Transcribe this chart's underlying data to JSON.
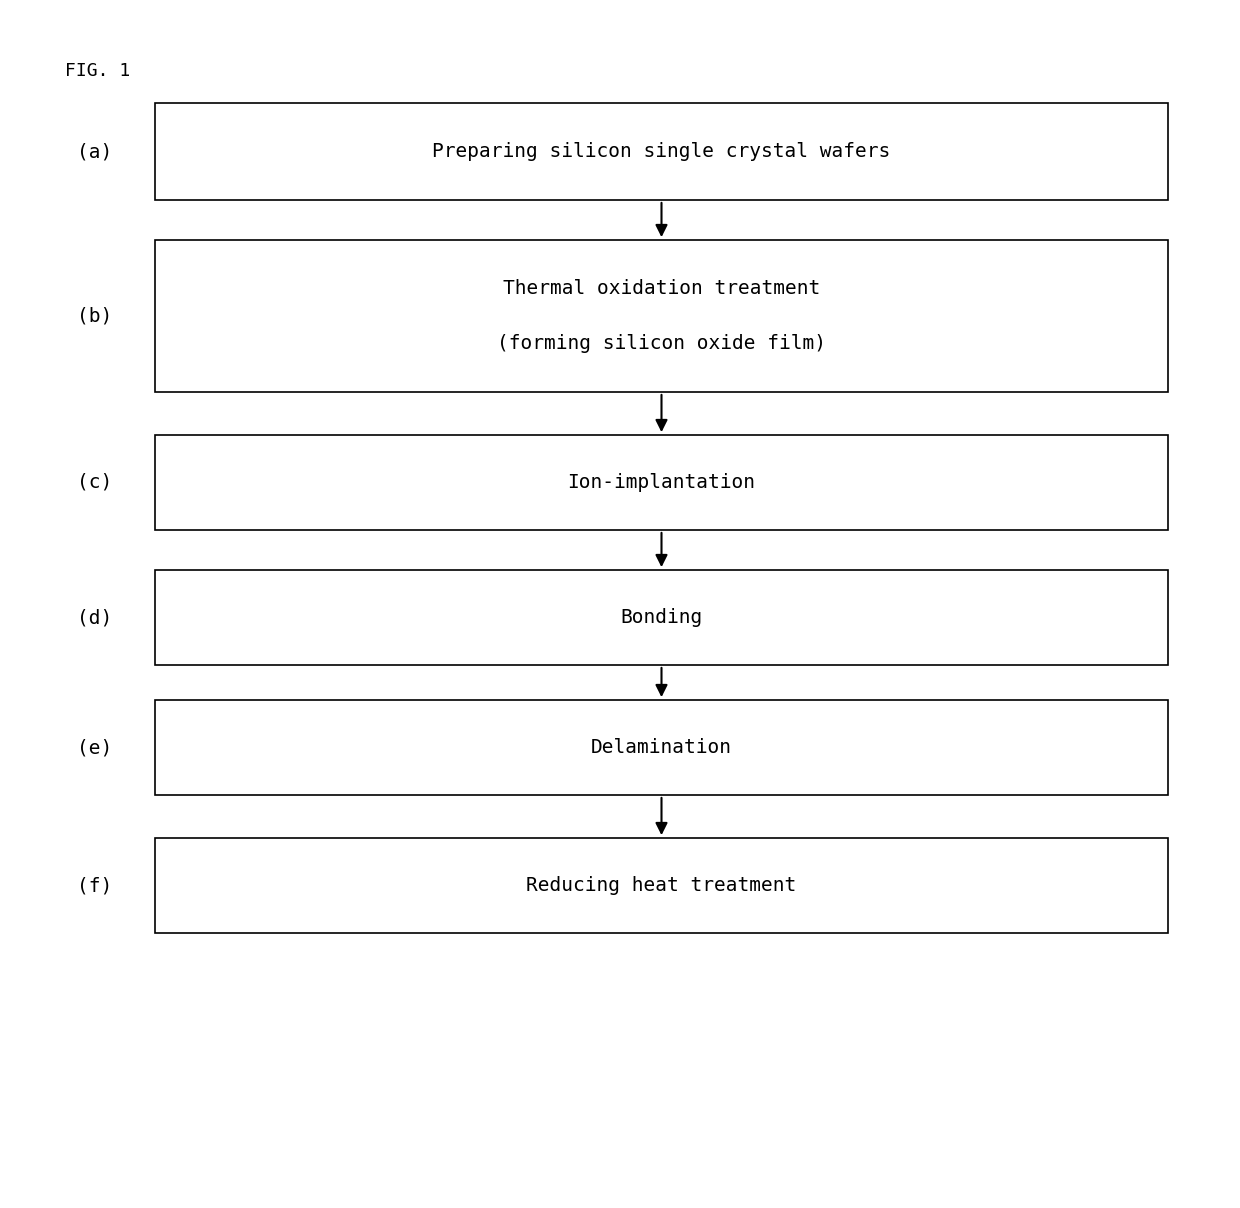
{
  "title": "FIG. 1",
  "title_fontsize": 13,
  "steps": [
    {
      "label": "(a)",
      "text": "Preparing silicon single crystal wafers",
      "text2": null
    },
    {
      "label": "(b)",
      "text": "Thermal oxidation treatment",
      "text2": "(forming silicon oxide film)"
    },
    {
      "label": "(c)",
      "text": "Ion-implantation",
      "text2": null
    },
    {
      "label": "(d)",
      "text": "Bonding",
      "text2": null
    },
    {
      "label": "(e)",
      "text": "Delamination",
      "text2": null
    },
    {
      "label": "(f)",
      "text": "Reducing heat treatment",
      "text2": null
    }
  ],
  "arrow_color": "#000000",
  "box_edge_color": "#000000",
  "box_face_color": "#ffffff",
  "text_color": "#000000",
  "text_fontsize": 14,
  "label_fontsize": 14,
  "font_family": "monospace",
  "background_color": "#ffffff",
  "fig_width": 12.4,
  "fig_height": 12.08,
  "dpi": 100
}
